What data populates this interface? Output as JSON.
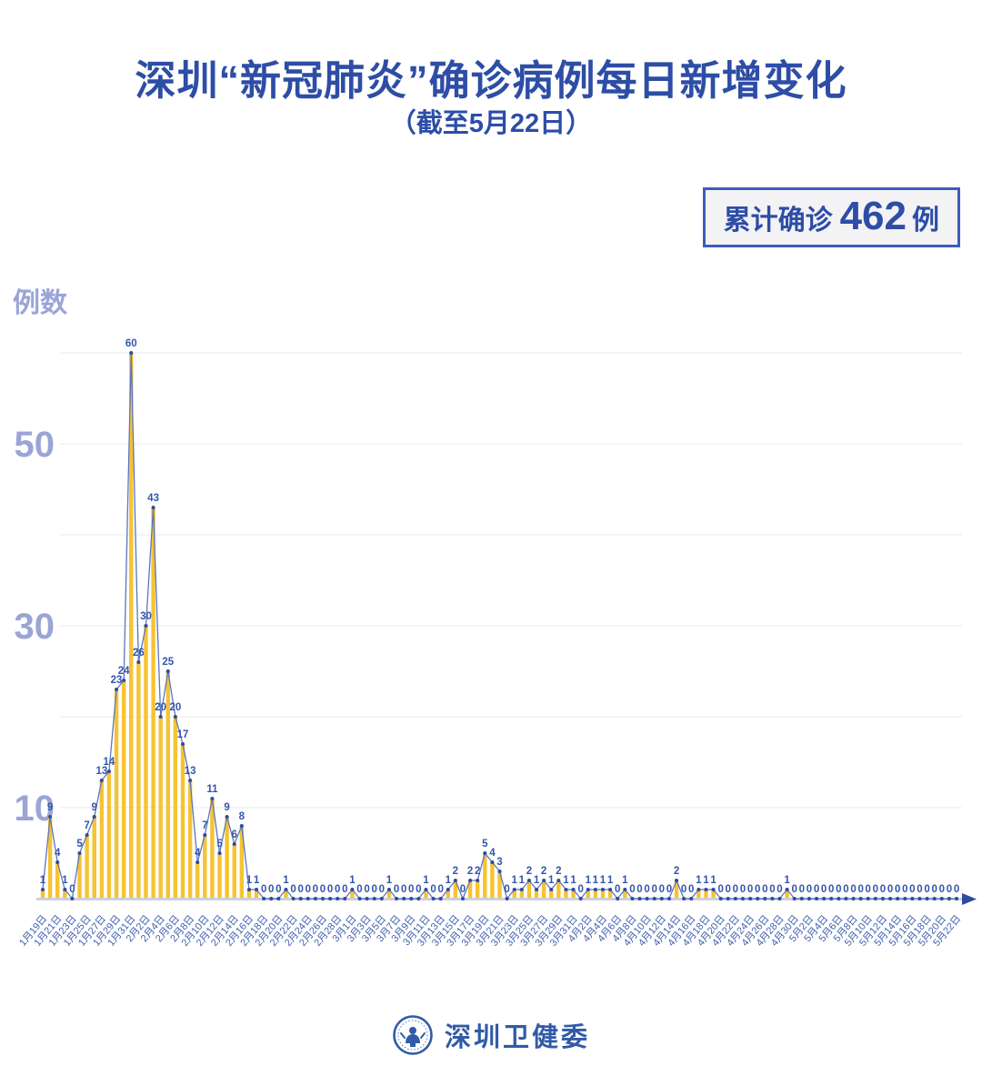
{
  "title": "深圳“新冠肺炎”确诊病例每日新增变化",
  "subtitle": "（截至5月22日）",
  "badge": {
    "prefix": "累计确诊",
    "value": "462",
    "suffix": "例"
  },
  "footer": {
    "logo": "shenzhen-health-commission-logo",
    "text": "深圳卫健委"
  },
  "chart_data": {
    "type": "bar",
    "overlay": "line",
    "title": "深圳“新冠肺炎”确诊病例每日新增变化",
    "subtitle": "（截至5月22日）",
    "ylabel": "例数",
    "xlabel": "",
    "ylim": [
      0,
      62
    ],
    "grid": true,
    "gridline_values": [
      10,
      20,
      30,
      40,
      50,
      60
    ],
    "y_tick_labels": [
      50,
      30,
      10
    ],
    "x_label_every": 2,
    "x_tick_labels": [
      "1月19日",
      "1月21日",
      "1月23日",
      "1月25日",
      "1月27日",
      "1月29日",
      "1月31日",
      "2月2日",
      "2月4日",
      "2月6日",
      "2月8日",
      "2月10日",
      "2月12日",
      "2月14日",
      "2月16日",
      "2月18日",
      "2月20日",
      "2月22日",
      "2月24日",
      "2月26日",
      "2月28日",
      "3月1日",
      "3月3日",
      "3月5日",
      "3月7日",
      "3月9日",
      "3月11日",
      "3月13日",
      "3月15日",
      "3月17日",
      "3月19日",
      "3月21日",
      "3月23日",
      "3月25日",
      "3月27日",
      "3月29日",
      "3月31日",
      "4月2日",
      "4月4日",
      "4月6日",
      "4月8日",
      "4月10日",
      "4月12日",
      "4月14日",
      "4月16日",
      "4月18日",
      "4月20日",
      "4月22日",
      "4月24日",
      "4月26日",
      "4月28日",
      "4月30日",
      "5月2日",
      "5月4日",
      "5月6日",
      "5月8日",
      "5月10日",
      "5月12日",
      "5月14日",
      "5月16日",
      "5月18日",
      "5月20日",
      "5月22日"
    ],
    "values": [
      1,
      9,
      4,
      1,
      0,
      5,
      7,
      9,
      13,
      14,
      23,
      24,
      60,
      26,
      30,
      43,
      20,
      25,
      20,
      17,
      13,
      4,
      7,
      11,
      5,
      9,
      6,
      8,
      1,
      1,
      0,
      0,
      0,
      1,
      0,
      0,
      0,
      0,
      0,
      0,
      0,
      0,
      1,
      0,
      0,
      0,
      0,
      1,
      0,
      0,
      0,
      0,
      1,
      0,
      0,
      1,
      2,
      0,
      2,
      2,
      5,
      4,
      3,
      0,
      1,
      1,
      2,
      1,
      2,
      1,
      2,
      1,
      1,
      0,
      1,
      1,
      1,
      1,
      0,
      1,
      0,
      0,
      0,
      0,
      0,
      0,
      2,
      0,
      0,
      1,
      1,
      1,
      0,
      0,
      0,
      0,
      0,
      0,
      0,
      0,
      0,
      1,
      0,
      0,
      0,
      0,
      0,
      0,
      0,
      0,
      0,
      0,
      0,
      0,
      0,
      0,
      0,
      0,
      0,
      0,
      0,
      0,
      0,
      0,
      0
    ],
    "total": 462,
    "colors": {
      "bar": "#f6c332",
      "line": "#5b76c0",
      "dot": "#2d4ba0",
      "point_label": "#3455ab",
      "axis_label": "#9aa5d6",
      "x_tick": "#4160ae",
      "grid": "#e9e9ee",
      "baseline": "#ccd1db",
      "accent": "#2d4da6"
    }
  }
}
